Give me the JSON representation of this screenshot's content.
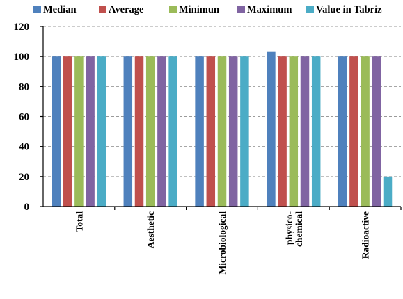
{
  "chart_data": {
    "type": "bar",
    "title": "",
    "xlabel": "",
    "ylabel": "",
    "ylim": [
      0,
      120
    ],
    "yticks": [
      0,
      20,
      40,
      60,
      80,
      100,
      120
    ],
    "grid": true,
    "legend_position": "top",
    "categories": [
      "Total",
      "Aesthetic",
      "Microbiological",
      "physico-chemical",
      "Radioactive"
    ],
    "category_lines": [
      [
        "Total"
      ],
      [
        "Aesthetic"
      ],
      [
        "Microbiological"
      ],
      [
        "physico-",
        "chemical"
      ],
      [
        "Radioactive"
      ]
    ],
    "series": [
      {
        "name": "Median",
        "color": "#4f81bd",
        "values": [
          100,
          100,
          100,
          103,
          100
        ]
      },
      {
        "name": "Average",
        "color": "#c0504d",
        "values": [
          100,
          100,
          100,
          100,
          100
        ]
      },
      {
        "name": "Minimun",
        "color": "#9bbb59",
        "values": [
          100,
          100,
          100,
          100,
          100
        ]
      },
      {
        "name": "Maximum",
        "color": "#8064a2",
        "values": [
          100,
          100,
          100,
          100,
          100
        ]
      },
      {
        "name": "Value in Tabriz",
        "color": "#4bacc6",
        "values": [
          100,
          100,
          100,
          100,
          20
        ]
      }
    ]
  }
}
